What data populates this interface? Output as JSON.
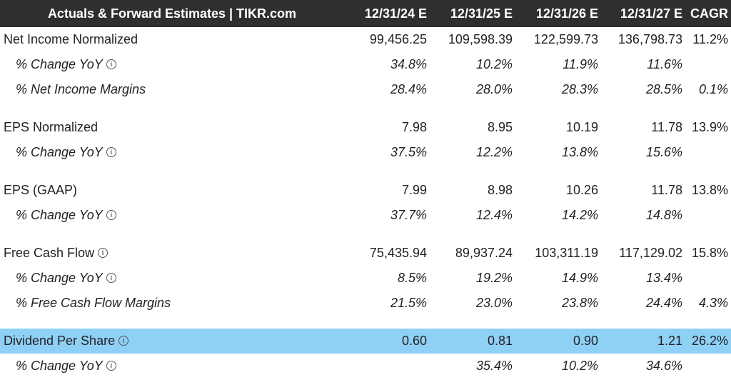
{
  "header": {
    "title": "Actuals & Forward Estimates | TIKR.com",
    "columns": [
      "12/31/24 E",
      "12/31/25 E",
      "12/31/26 E",
      "12/31/27 E",
      "CAGR"
    ]
  },
  "rows": {
    "net_income": {
      "label": "Net Income Normalized",
      "values": [
        "99,456.25",
        "109,598.39",
        "122,599.73",
        "136,798.73",
        "11.2%"
      ]
    },
    "net_income_yoy": {
      "label": "% Change YoY",
      "values": [
        "34.8%",
        "10.2%",
        "11.9%",
        "11.6%",
        ""
      ]
    },
    "net_income_margins": {
      "label": "% Net Income Margins",
      "values": [
        "28.4%",
        "28.0%",
        "28.3%",
        "28.5%",
        "0.1%"
      ]
    },
    "eps_normalized": {
      "label": "EPS Normalized",
      "values": [
        "7.98",
        "8.95",
        "10.19",
        "11.78",
        "13.9%"
      ]
    },
    "eps_normalized_yoy": {
      "label": "% Change YoY",
      "values": [
        "37.5%",
        "12.2%",
        "13.8%",
        "15.6%",
        ""
      ]
    },
    "eps_gaap": {
      "label": "EPS (GAAP)",
      "values": [
        "7.99",
        "8.98",
        "10.26",
        "11.78",
        "13.8%"
      ]
    },
    "eps_gaap_yoy": {
      "label": "% Change YoY",
      "values": [
        "37.7%",
        "12.4%",
        "14.2%",
        "14.8%",
        ""
      ]
    },
    "fcf": {
      "label": "Free Cash Flow",
      "values": [
        "75,435.94",
        "89,937.24",
        "103,311.19",
        "117,129.02",
        "15.8%"
      ]
    },
    "fcf_yoy": {
      "label": "% Change YoY",
      "values": [
        "8.5%",
        "19.2%",
        "14.9%",
        "13.4%",
        ""
      ]
    },
    "fcf_margins": {
      "label": "% Free Cash Flow Margins",
      "values": [
        "21.5%",
        "23.0%",
        "23.8%",
        "24.4%",
        "4.3%"
      ]
    },
    "dps": {
      "label": "Dividend Per Share",
      "values": [
        "0.60",
        "0.81",
        "0.90",
        "1.21",
        "26.2%"
      ]
    },
    "dps_yoy": {
      "label": "% Change YoY",
      "values": [
        "",
        "35.4%",
        "10.2%",
        "34.6%",
        ""
      ]
    }
  },
  "icons": {
    "info": "info-icon"
  },
  "colors": {
    "header_bg": "#2f2f2f",
    "highlight": "#8fd0f7"
  }
}
